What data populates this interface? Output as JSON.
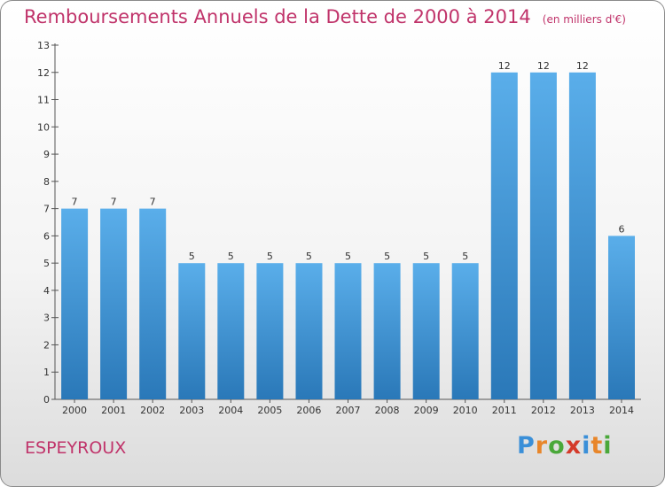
{
  "header": {
    "title": "Remboursements Annuels de la Dette de 2000 à 2014",
    "unit_note": "(en milliers d'€)"
  },
  "footer": {
    "commune": "ESPEYROUX",
    "logo_letters": [
      "P",
      "r",
      "o",
      "x",
      "i",
      "t",
      "i"
    ]
  },
  "colors": {
    "title": "#c0336a",
    "bar_top": "#5aaeea",
    "bar_bottom": "#2a78b8",
    "logo": [
      "#3a8fd8",
      "#e8862a",
      "#4aa83a",
      "#d43a2a",
      "#3a8fd8",
      "#e8862a",
      "#4aa83a"
    ]
  },
  "chart_data": {
    "type": "bar",
    "title": "Remboursements Annuels de la Dette de 2000 à 2014",
    "subtitle": "(en milliers d'€)",
    "categories": [
      "2000",
      "2001",
      "2002",
      "2003",
      "2004",
      "2005",
      "2006",
      "2007",
      "2008",
      "2009",
      "2010",
      "2011",
      "2012",
      "2013",
      "2014"
    ],
    "values": [
      7,
      7,
      7,
      5,
      5,
      5,
      5,
      5,
      5,
      5,
      5,
      12,
      12,
      12,
      6
    ],
    "ylim": [
      0,
      13
    ],
    "yticks": [
      0,
      1,
      2,
      3,
      4,
      5,
      6,
      7,
      8,
      9,
      10,
      11,
      12,
      13
    ],
    "grid": false,
    "data_labels": true
  }
}
